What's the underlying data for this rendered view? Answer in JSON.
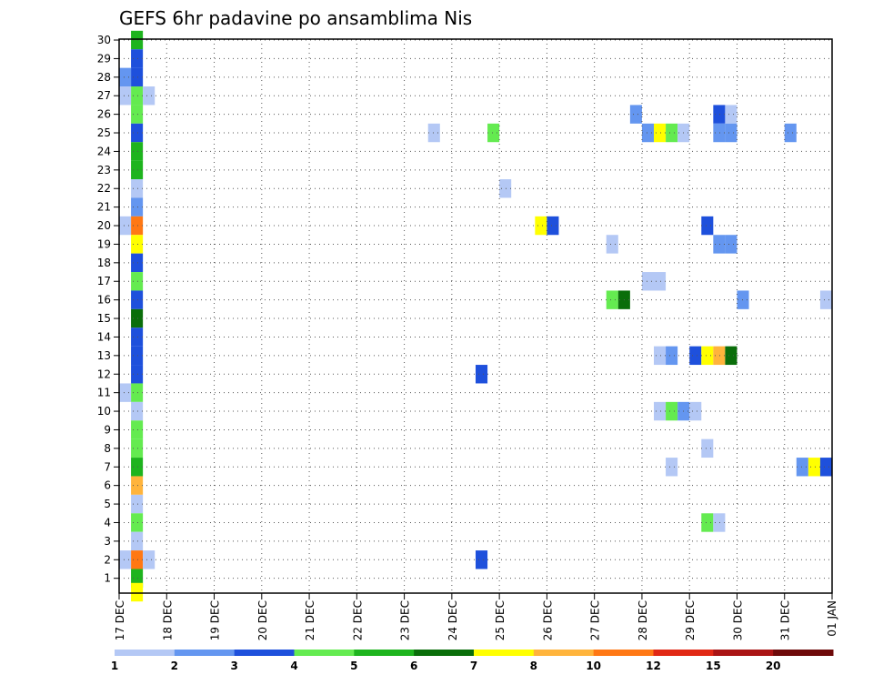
{
  "chart_data": {
    "type": "heatmap",
    "title": "GEFS 6hr padavine po ansamblima Nis",
    "x_tick_labels": [
      "17 DEC",
      "18 DEC",
      "19 DEC",
      "20 DEC",
      "21 DEC",
      "22 DEC",
      "23 DEC",
      "24 DEC",
      "25 DEC",
      "26 DEC",
      "27 DEC",
      "28 DEC",
      "29 DEC",
      "30 DEC",
      "31 DEC",
      "01 JAN"
    ],
    "y_tick_labels": [
      "1",
      "2",
      "3",
      "4",
      "5",
      "6",
      "7",
      "8",
      "9",
      "10",
      "11",
      "12",
      "13",
      "14",
      "15",
      "16",
      "17",
      "18",
      "19",
      "20",
      "21",
      "22",
      "23",
      "24",
      "25",
      "26",
      "27",
      "28",
      "29",
      "30"
    ],
    "x_unit": "days since 17 DEC",
    "xlim": [
      0,
      15
    ],
    "ylim": [
      0.2,
      30.05
    ],
    "grid": true,
    "colorbar": {
      "labels": [
        "1",
        "2",
        "3",
        "4",
        "5",
        "6",
        "7",
        "8",
        "10",
        "12",
        "15",
        "20"
      ],
      "colors": [
        "#b4c8f5",
        "#6496f0",
        "#1e50dc",
        "#64eb50",
        "#1eb41e",
        "#0a6e0a",
        "#ffff00",
        "#ffb43c",
        "#ff7814",
        "#e12814",
        "#aa1414",
        "#6e0a0a"
      ]
    },
    "cell_width_days": 0.25,
    "columns": [
      {
        "x": 0.25,
        "cells": [
          [
            30,
            "#1eb41e"
          ],
          [
            29,
            "#1e50dc"
          ],
          [
            28,
            "#1e50dc"
          ],
          [
            27,
            "#64eb50"
          ],
          [
            26,
            "#64eb50"
          ],
          [
            25,
            "#1e50dc"
          ],
          [
            24,
            "#1eb41e"
          ],
          [
            23,
            "#1eb41e"
          ],
          [
            22,
            "#b4c8f5"
          ],
          [
            21,
            "#6496f0"
          ],
          [
            20,
            "#ff7814"
          ],
          [
            19,
            "#ffff00"
          ],
          [
            18,
            "#1e50dc"
          ],
          [
            17,
            "#64eb50"
          ],
          [
            16,
            "#1e50dc"
          ],
          [
            15,
            "#0a6e0a"
          ],
          [
            14,
            "#1e50dc"
          ],
          [
            13,
            "#1e50dc"
          ],
          [
            12,
            "#1e50dc"
          ],
          [
            11,
            "#64eb50"
          ],
          [
            10,
            "#b4c8f5"
          ],
          [
            9,
            "#64eb50"
          ],
          [
            8,
            "#64eb50"
          ],
          [
            7,
            "#1eb41e"
          ],
          [
            6,
            "#ffb43c"
          ],
          [
            5,
            "#b4c8f5"
          ],
          [
            4,
            "#64eb50"
          ],
          [
            3,
            "#b4c8f5"
          ],
          [
            2,
            "#ff7814"
          ],
          [
            1,
            "#1eb41e"
          ],
          [
            0.25,
            "#ffff00"
          ]
        ]
      },
      {
        "x": 0,
        "cells": [
          [
            28,
            "#6496f0"
          ],
          [
            27,
            "#b4c8f5"
          ],
          [
            20,
            "#b4c8f5"
          ],
          [
            11,
            "#b4c8f5"
          ],
          [
            2,
            "#b4c8f5"
          ]
        ]
      },
      {
        "x": 0.5,
        "cells": [
          [
            27,
            "#b4c8f5"
          ],
          [
            2,
            "#b4c8f5"
          ]
        ]
      },
      {
        "x": 6.5,
        "cells": [
          [
            25,
            "#b4c8f5"
          ]
        ]
      },
      {
        "x": 7.5,
        "cells": [
          [
            12,
            "#1e50dc"
          ],
          [
            2,
            "#1e50dc"
          ]
        ]
      },
      {
        "x": 7.75,
        "cells": [
          [
            25,
            "#64eb50"
          ]
        ]
      },
      {
        "x": 8,
        "cells": [
          [
            22,
            "#b4c8f5"
          ]
        ]
      },
      {
        "x": 8.75,
        "cells": [
          [
            20,
            "#ffff00"
          ]
        ]
      },
      {
        "x": 9,
        "cells": [
          [
            20,
            "#1e50dc"
          ]
        ]
      },
      {
        "x": 10.25,
        "cells": [
          [
            19,
            "#b4c8f5"
          ],
          [
            16,
            "#64eb50"
          ]
        ]
      },
      {
        "x": 10.5,
        "cells": [
          [
            16,
            "#0a6e0a"
          ]
        ]
      },
      {
        "x": 10.75,
        "cells": [
          [
            26,
            "#6496f0"
          ]
        ]
      },
      {
        "x": 11,
        "cells": [
          [
            25,
            "#6496f0"
          ],
          [
            17,
            "#b4c8f5"
          ]
        ]
      },
      {
        "x": 11.25,
        "cells": [
          [
            25,
            "#ffff00"
          ],
          [
            17,
            "#b4c8f5"
          ],
          [
            13,
            "#b4c8f5"
          ],
          [
            10,
            "#b4c8f5"
          ]
        ]
      },
      {
        "x": 11.5,
        "cells": [
          [
            25,
            "#64eb50"
          ],
          [
            13,
            "#6496f0"
          ],
          [
            10,
            "#64eb50"
          ],
          [
            7,
            "#b4c8f5"
          ]
        ]
      },
      {
        "x": 11.75,
        "cells": [
          [
            25,
            "#b4c8f5"
          ],
          [
            10,
            "#6496f0"
          ]
        ]
      },
      {
        "x": 12,
        "cells": [
          [
            13,
            "#1e50dc"
          ],
          [
            10,
            "#b4c8f5"
          ]
        ]
      },
      {
        "x": 12.25,
        "cells": [
          [
            20,
            "#1e50dc"
          ],
          [
            13,
            "#ffff00"
          ],
          [
            8,
            "#b4c8f5"
          ],
          [
            4,
            "#64eb50"
          ]
        ]
      },
      {
        "x": 12.5,
        "cells": [
          [
            26,
            "#1e50dc"
          ],
          [
            25,
            "#6496f0"
          ],
          [
            19,
            "#6496f0"
          ],
          [
            13,
            "#ffb43c"
          ],
          [
            4,
            "#b4c8f5"
          ]
        ]
      },
      {
        "x": 12.75,
        "cells": [
          [
            26,
            "#b4c8f5"
          ],
          [
            25,
            "#6496f0"
          ],
          [
            19,
            "#6496f0"
          ],
          [
            13,
            "#0a6e0a"
          ]
        ]
      },
      {
        "x": 13,
        "cells": [
          [
            16,
            "#6496f0"
          ]
        ]
      },
      {
        "x": 14,
        "cells": [
          [
            25,
            "#6496f0"
          ]
        ]
      },
      {
        "x": 14.25,
        "cells": [
          [
            7,
            "#6496f0"
          ]
        ]
      },
      {
        "x": 14.5,
        "cells": [
          [
            7,
            "#ffff00"
          ]
        ]
      },
      {
        "x": 14.75,
        "cells": [
          [
            16,
            "#b4c8f5"
          ],
          [
            7,
            "#1e50dc"
          ]
        ]
      }
    ]
  }
}
